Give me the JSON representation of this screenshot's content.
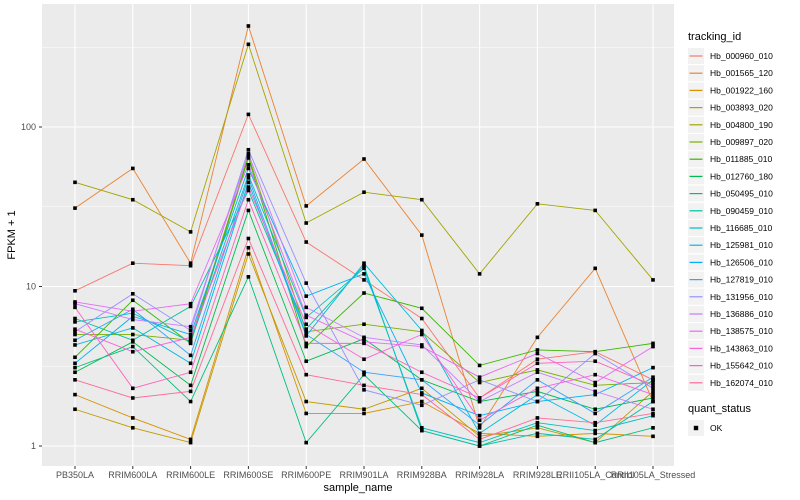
{
  "chart_data": {
    "type": "line",
    "title": "",
    "xlabel": "sample_name",
    "ylabel": "FPKM + 1",
    "y_scale": "log10",
    "ylim": [
      1,
      500
    ],
    "y_tick_labels": [
      "1",
      "10",
      "100"
    ],
    "y_tick_values": [
      1,
      10,
      100
    ],
    "y_minor_values": [
      3.162,
      31.62,
      316.2
    ],
    "grid": "on",
    "legend_position": "right",
    "legend_title": "tracking_id",
    "quant_legend": {
      "title": "quant_status",
      "items": [
        "OK"
      ]
    },
    "marker": {
      "shape": "square",
      "color": "#000000"
    },
    "colors": {
      "panel_bg": "#EBEBEB",
      "grid": "#FFFFFF",
      "tick_text": "#4D4D4D",
      "axis_title": "#000000",
      "legend_key_bg": "#F2F2F2",
      "tick_mark": "#333333"
    },
    "categories": [
      "PB350LA",
      "RRIM600LA",
      "RRIM600LE",
      "RRIM600SE",
      "RRIM600PE",
      "RRIM901LA",
      "RRIM928BA",
      "RRIM928LA",
      "RRIM928LE",
      "RRII105LA_Control",
      "RRII105LA_Stressed"
    ],
    "series": [
      {
        "name": "Hb_000960_010",
        "color": "#F8766D",
        "values": [
          9.4,
          14,
          13.5,
          120,
          19,
          11,
          6.3,
          2.0,
          3.5,
          3.9,
          2.6
        ]
      },
      {
        "name": "Hb_001565_120",
        "color": "#EA8331",
        "values": [
          31,
          55,
          14,
          430,
          32,
          63,
          21,
          1.3,
          4.8,
          13,
          1.9
        ]
      },
      {
        "name": "Hb_001922_160",
        "color": "#D89000",
        "values": [
          2.1,
          1.5,
          1.1,
          17.5,
          1.6,
          1.6,
          1.9,
          1.2,
          1.15,
          1.2,
          1.15
        ]
      },
      {
        "name": "Hb_003893_020",
        "color": "#C09B00",
        "values": [
          1.7,
          1.3,
          1.05,
          16,
          1.9,
          1.7,
          2.3,
          1.15,
          1.3,
          1.05,
          2.2
        ]
      },
      {
        "name": "Hb_004800_190",
        "color": "#A3A500",
        "values": [
          45,
          35,
          22,
          330,
          25,
          39,
          35,
          12,
          33,
          30,
          11
        ]
      },
      {
        "name": "Hb_009897_020",
        "color": "#7CAE00",
        "values": [
          5.0,
          5.0,
          4.6,
          66,
          5.2,
          5.8,
          5.2,
          2.5,
          3.0,
          2.4,
          2.5
        ]
      },
      {
        "name": "Hb_011885_010",
        "color": "#39B600",
        "values": [
          3.6,
          8.2,
          4.4,
          64,
          4.2,
          9.1,
          7.3,
          3.2,
          4.0,
          3.9,
          4.4
        ]
      },
      {
        "name": "Hb_012760_180",
        "color": "#00BB4E",
        "values": [
          2.9,
          4.5,
          2.4,
          30,
          3.4,
          4.7,
          2.6,
          1.9,
          2.2,
          1.7,
          2.0
        ]
      },
      {
        "name": "Hb_050495_010",
        "color": "#00BF7D",
        "values": [
          3.1,
          4.2,
          1.9,
          11.5,
          1.05,
          2.8,
          1.25,
          1.0,
          1.35,
          1.05,
          1.3
        ]
      },
      {
        "name": "Hb_090459_010",
        "color": "#00C1A3",
        "values": [
          6.3,
          4.6,
          7.5,
          40,
          5.4,
          13.5,
          1.25,
          1.0,
          1.2,
          1.1,
          1.9
        ]
      },
      {
        "name": "Hb_116685_010",
        "color": "#00BFC4",
        "values": [
          6.0,
          6.8,
          4.5,
          50,
          6.4,
          13,
          1.3,
          1.05,
          1.4,
          1.25,
          1.55
        ]
      },
      {
        "name": "Hb_125981_010",
        "color": "#00BAE0",
        "values": [
          4.3,
          5.5,
          3.3,
          45,
          4.9,
          14,
          5.3,
          1.2,
          2.1,
          1.35,
          2.6
        ]
      },
      {
        "name": "Hb_126506_010",
        "color": "#00B0F6",
        "values": [
          3.3,
          6.5,
          5.0,
          55,
          8.7,
          12,
          2.15,
          1.55,
          1.9,
          2.1,
          3.1
        ]
      },
      {
        "name": "Hb_127819_010",
        "color": "#35A2FF",
        "values": [
          4.6,
          7.2,
          3.7,
          48,
          5.0,
          2.9,
          2.6,
          1.35,
          2.6,
          1.6,
          2.7
        ]
      },
      {
        "name": "Hb_131956_010",
        "color": "#9590FF",
        "values": [
          5.2,
          9.0,
          5.3,
          72,
          10.5,
          2.25,
          1.8,
          2.6,
          1.9,
          3.8,
          2.3
        ]
      },
      {
        "name": "Hb_136886_010",
        "color": "#C77CFF",
        "values": [
          7.8,
          6.2,
          5.6,
          68,
          7.4,
          4.8,
          4.3,
          1.9,
          2.9,
          2.2,
          1.7
        ]
      },
      {
        "name": "Hb_138575_010",
        "color": "#E76BF3",
        "values": [
          8.0,
          7.0,
          7.8,
          58,
          6.6,
          4.5,
          4.2,
          2.7,
          3.8,
          2.5,
          4.2
        ]
      },
      {
        "name": "Hb_143863_010",
        "color": "#FA62DB",
        "values": [
          5.4,
          3.9,
          4.8,
          42,
          5.8,
          3.5,
          5.0,
          1.45,
          2.3,
          2.8,
          2.1
        ]
      },
      {
        "name": "Hb_155642_010",
        "color": "#FF62BC",
        "values": [
          7.4,
          2.3,
          2.9,
          35,
          4.4,
          4.4,
          2.9,
          2.0,
          3.3,
          3.4,
          2.4
        ]
      },
      {
        "name": "Hb_162074_010",
        "color": "#FF6A98",
        "values": [
          2.6,
          2.0,
          2.2,
          20,
          2.8,
          2.4,
          2.1,
          1.1,
          1.5,
          1.4,
          1.6
        ]
      }
    ]
  }
}
